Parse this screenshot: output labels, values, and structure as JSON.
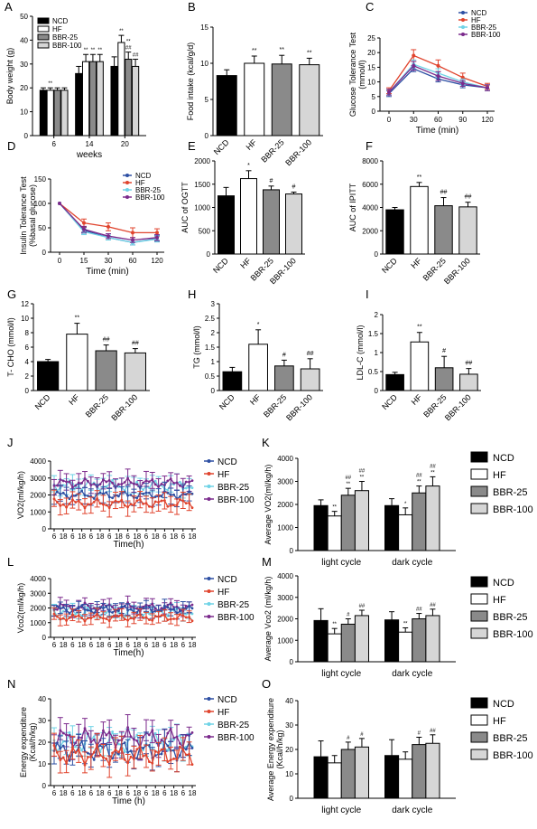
{
  "legend_groups": [
    "NCD",
    "HF",
    "BBR-25",
    "BBR-100"
  ],
  "colors": {
    "ncd_bar": "#000000",
    "hf_bar": "#ffffff",
    "bbr25_bar": "#8a8a8a",
    "bbr100_bar": "#d6d6d6",
    "ncd_line": "#2d4fa3",
    "hf_line": "#e0442e",
    "bbr25_line": "#6fd3e6",
    "bbr100_line": "#7b2a8c"
  },
  "chart_data": [
    {
      "id": "A",
      "letter": "A",
      "type": "bar",
      "ylabel": "Body weight (g)",
      "xlabel": "weeks",
      "ylim": [
        0,
        50
      ],
      "yticks": [
        0,
        10,
        20,
        30,
        40,
        50
      ],
      "categories": [
        "6",
        "14",
        "20"
      ],
      "series": [
        {
          "name": "NCD",
          "values": [
            19,
            26,
            29
          ],
          "err": [
            1,
            3,
            4
          ]
        },
        {
          "name": "HF",
          "values": [
            19,
            31,
            39
          ],
          "err": [
            1,
            3,
            3
          ]
        },
        {
          "name": "BBR-25",
          "values": [
            19,
            31,
            32
          ],
          "err": [
            1,
            3,
            3
          ]
        },
        {
          "name": "BBR-100",
          "values": [
            19,
            31,
            29
          ],
          "err": [
            1,
            3,
            3
          ]
        }
      ],
      "marks": [
        [
          0,
          1,
          "**"
        ],
        [
          1,
          1,
          "**"
        ],
        [
          1,
          2,
          "**"
        ],
        [
          1,
          3,
          "**"
        ],
        [
          2,
          1,
          "**"
        ],
        [
          2,
          2,
          "**\n##"
        ],
        [
          2,
          3,
          "##"
        ]
      ],
      "legend_inside": true
    },
    {
      "id": "B",
      "letter": "B",
      "type": "bar",
      "ylabel": "Food intake (kcal/g/d)",
      "ylim": [
        0,
        15
      ],
      "yticks": [
        0,
        5,
        10,
        15
      ],
      "categories": [
        "NCD",
        "HF",
        "BBR-25",
        "BBR-100"
      ],
      "values": [
        8.3,
        10,
        9.9,
        9.8
      ],
      "err": [
        0.8,
        1.0,
        1.2,
        0.9
      ],
      "marks": [
        "",
        "**",
        "**",
        "**"
      ]
    },
    {
      "id": "C",
      "letter": "C",
      "type": "line",
      "ylabel": "Glucose Tolerance Test\n(mmol/l)",
      "xlabel": "Time (min)",
      "x": [
        0,
        30,
        60,
        90,
        120
      ],
      "ylim": [
        0,
        25
      ],
      "yticks": [
        0,
        5,
        10,
        15,
        20,
        25
      ],
      "series": [
        {
          "name": "NCD",
          "values": [
            6,
            14.5,
            11,
            9,
            8
          ],
          "err": [
            1,
            1,
            1,
            1,
            1
          ]
        },
        {
          "name": "HF",
          "values": [
            7,
            19,
            15.5,
            11.5,
            8.5
          ],
          "err": [
            1,
            2,
            2,
            1.5,
            1
          ]
        },
        {
          "name": "BBR-25",
          "values": [
            6.5,
            16,
            13,
            10,
            8
          ],
          "err": [
            1,
            1.5,
            1.5,
            1,
            1
          ]
        },
        {
          "name": "BBR-100",
          "values": [
            6.5,
            15.5,
            12,
            9.5,
            8
          ],
          "err": [
            1,
            1.5,
            1.5,
            1,
            1
          ]
        }
      ]
    },
    {
      "id": "D",
      "letter": "D",
      "type": "line",
      "ylabel": "Insulin Tolerance Test\n(%basal glucose)",
      "xlabel": "Time (min)",
      "x": [
        0,
        15,
        30,
        60,
        120
      ],
      "ylim": [
        0,
        150
      ],
      "yticks": [
        0,
        50,
        100,
        150
      ],
      "series": [
        {
          "name": "NCD",
          "values": [
            100,
            45,
            30,
            20,
            28
          ],
          "err": [
            0,
            6,
            5,
            5,
            6
          ]
        },
        {
          "name": "HF",
          "values": [
            100,
            60,
            52,
            40,
            40
          ],
          "err": [
            0,
            8,
            8,
            10,
            8
          ]
        },
        {
          "name": "BBR-25",
          "values": [
            100,
            42,
            30,
            20,
            27
          ],
          "err": [
            0,
            6,
            5,
            5,
            6
          ]
        },
        {
          "name": "BBR-100",
          "values": [
            100,
            47,
            33,
            25,
            30
          ],
          "err": [
            0,
            6,
            5,
            5,
            6
          ]
        }
      ]
    },
    {
      "id": "E",
      "letter": "E",
      "type": "bar",
      "ylabel": "AUC of OGTT",
      "ylim": [
        0,
        2000
      ],
      "yticks": [
        0,
        500,
        1000,
        1500,
        2000
      ],
      "categories": [
        "NCD",
        "HF",
        "BBR-25",
        "BBR-100"
      ],
      "values": [
        1250,
        1620,
        1380,
        1290
      ],
      "err": [
        180,
        170,
        80,
        40
      ],
      "marks": [
        "",
        "*",
        "#",
        "#"
      ]
    },
    {
      "id": "F",
      "letter": "F",
      "type": "bar",
      "ylabel": "AUC of IPITT",
      "ylim": [
        0,
        8000
      ],
      "yticks": [
        0,
        2000,
        4000,
        6000,
        8000
      ],
      "categories": [
        "NCD",
        "HF",
        "BBR-25",
        "BBR-100"
      ],
      "values": [
        3800,
        5800,
        4150,
        4050
      ],
      "err": [
        200,
        350,
        700,
        400
      ],
      "marks": [
        "",
        "**",
        "##",
        "##"
      ]
    },
    {
      "id": "G",
      "letter": "G",
      "type": "bar",
      "ylabel": "T- CHO (mmol/l)",
      "ylim": [
        0,
        12
      ],
      "yticks": [
        0,
        2,
        4,
        6,
        8,
        10,
        12
      ],
      "categories": [
        "NCD",
        "HF",
        "BBR-25",
        "BBR-100"
      ],
      "values": [
        4.0,
        7.8,
        5.5,
        5.2
      ],
      "err": [
        0.3,
        1.5,
        0.8,
        0.6
      ],
      "marks": [
        "",
        "**",
        "##",
        "##"
      ]
    },
    {
      "id": "H",
      "letter": "H",
      "type": "bar",
      "ylabel": "TG (mmol/l)",
      "ylim": [
        0,
        3
      ],
      "yticks": [
        0,
        0.5,
        1,
        1.5,
        2,
        2.5,
        3
      ],
      "ytick_labels": [
        "0",
        "0.5",
        "1",
        "1.5",
        "2",
        "2.5",
        "3"
      ],
      "categories": [
        "NCD",
        "HF",
        "BBR-25",
        "BBR-100"
      ],
      "values": [
        0.65,
        1.6,
        0.85,
        0.75
      ],
      "err": [
        0.15,
        0.5,
        0.2,
        0.35
      ],
      "marks": [
        "",
        "*",
        "#",
        "##"
      ]
    },
    {
      "id": "I",
      "letter": "I",
      "type": "bar",
      "ylabel": "LDL-C (mmol/l)",
      "ylim": [
        0,
        2
      ],
      "yticks": [
        0,
        0.5,
        1,
        1.5,
        2
      ],
      "ytick_labels": [
        "0",
        "0.5",
        "1",
        "1.5",
        "2"
      ],
      "categories": [
        "NCD",
        "HF",
        "BBR-25",
        "BBR-100"
      ],
      "values": [
        0.42,
        1.28,
        0.6,
        0.43
      ],
      "err": [
        0.06,
        0.25,
        0.3,
        0.15
      ],
      "marks": [
        "",
        "**",
        "#",
        "##"
      ]
    },
    {
      "id": "J",
      "letter": "J",
      "type": "line",
      "ylabel": "VO2(ml/kg/h)",
      "xlabel": "Time(h)",
      "xtick_labels": [
        "6",
        "18",
        "6",
        "18",
        "6",
        "18",
        "6",
        "18",
        "6",
        "18",
        "6",
        "18",
        "6",
        "18",
        "6",
        "18"
      ],
      "ylim": [
        0,
        4000
      ],
      "yticks": [
        0,
        1000,
        2000,
        3000,
        4000
      ],
      "series": [
        {
          "name": "NCD",
          "base": 2000,
          "amp": 150
        },
        {
          "name": "HF",
          "base": 1500,
          "amp": 180
        },
        {
          "name": "BBR-25",
          "base": 2550,
          "amp": 200
        },
        {
          "name": "BBR-100",
          "base": 2700,
          "amp": 180
        }
      ],
      "err": 550
    },
    {
      "id": "K",
      "letter": "K",
      "type": "bar",
      "ylabel": "Average VO2(ml/kg/h)",
      "ylim": [
        0,
        4000
      ],
      "yticks": [
        0,
        1000,
        2000,
        3000,
        4000
      ],
      "categories": [
        "light cycle",
        "dark cycle"
      ],
      "series": [
        {
          "name": "NCD",
          "values": [
            1950,
            1950
          ],
          "err": [
            250,
            300
          ]
        },
        {
          "name": "HF",
          "values": [
            1500,
            1550
          ],
          "err": [
            200,
            300
          ]
        },
        {
          "name": "BBR-25",
          "values": [
            2400,
            2500
          ],
          "err": [
            300,
            300
          ]
        },
        {
          "name": "BBR-100",
          "values": [
            2600,
            2800
          ],
          "err": [
            400,
            400
          ]
        }
      ],
      "marks": [
        [
          0,
          1,
          "**"
        ],
        [
          0,
          2,
          "##\n**"
        ],
        [
          0,
          3,
          "##\n**"
        ],
        [
          1,
          1,
          "*"
        ],
        [
          1,
          2,
          "##\n**"
        ],
        [
          1,
          3,
          "##\n**"
        ]
      ]
    },
    {
      "id": "L",
      "letter": "L",
      "type": "line",
      "ylabel": "Vco2(ml/kg/h)",
      "xlabel": "Time(h)",
      "xtick_labels": [
        "6",
        "18",
        "6",
        "18",
        "6",
        "18",
        "6",
        "18",
        "6",
        "18",
        "6",
        "18",
        "6",
        "18",
        "6",
        "18"
      ],
      "ylim": [
        0,
        4000
      ],
      "yticks": [
        0,
        1000,
        2000,
        3000,
        4000
      ],
      "series": [
        {
          "name": "NCD",
          "base": 1900,
          "amp": 180
        },
        {
          "name": "HF",
          "base": 1350,
          "amp": 160
        },
        {
          "name": "BBR-25",
          "base": 1750,
          "amp": 220
        },
        {
          "name": "BBR-100",
          "base": 2050,
          "amp": 200
        }
      ],
      "err": 450
    },
    {
      "id": "M",
      "letter": "M",
      "type": "bar",
      "ylabel": "Average Vco2 (ml/kg/h)",
      "ylim": [
        0,
        4000
      ],
      "yticks": [
        0,
        1000,
        2000,
        3000,
        4000
      ],
      "categories": [
        "light  cycle",
        "dark cycle"
      ],
      "series": [
        {
          "name": "NCD",
          "values": [
            1920,
            1950
          ],
          "err": [
            550,
            380
          ]
        },
        {
          "name": "HF",
          "values": [
            1300,
            1380
          ],
          "err": [
            250,
            200
          ]
        },
        {
          "name": "BBR-25",
          "values": [
            1750,
            2000
          ],
          "err": [
            250,
            250
          ]
        },
        {
          "name": "BBR-100",
          "values": [
            2150,
            2150
          ],
          "err": [
            250,
            300
          ]
        }
      ],
      "marks": [
        [
          0,
          1,
          "**"
        ],
        [
          0,
          2,
          "#"
        ],
        [
          0,
          3,
          "##"
        ],
        [
          1,
          1,
          "**"
        ],
        [
          1,
          2,
          "##"
        ],
        [
          1,
          3,
          "##"
        ]
      ]
    },
    {
      "id": "N",
      "letter": "N",
      "type": "line",
      "ylabel": "Energy expenditure\n(Kcal/h/kg)",
      "xlabel": "Time (h)",
      "xtick_labels": [
        "6",
        "18",
        "6",
        "18",
        "6",
        "18",
        "6",
        "18",
        "6",
        "18",
        "6",
        "18",
        "6",
        "18",
        "6",
        "18"
      ],
      "ylim": [
        0,
        40
      ],
      "yticks": [
        0,
        10,
        20,
        30,
        40
      ],
      "series": [
        {
          "name": "NCD",
          "base": 16,
          "amp": 3
        },
        {
          "name": "HF",
          "base": 14,
          "amp": 3
        },
        {
          "name": "BBR-25",
          "base": 20,
          "amp": 3
        },
        {
          "name": "BBR-100",
          "base": 22,
          "amp": 3
        }
      ],
      "err": 6
    },
    {
      "id": "O",
      "letter": "O",
      "type": "bar",
      "ylabel": "Average Energy expenditure\n(Kcal/h/kg)",
      "ylim": [
        0,
        40
      ],
      "yticks": [
        0,
        10,
        20,
        30,
        40
      ],
      "categories": [
        "light cycle",
        "dark cycle"
      ],
      "series": [
        {
          "name": "NCD",
          "values": [
            17,
            17.5
          ],
          "err": [
            6.5,
            6.5
          ]
        },
        {
          "name": "HF",
          "values": [
            14.5,
            16
          ],
          "err": [
            3,
            3
          ]
        },
        {
          "name": "BBR-25",
          "values": [
            20,
            22
          ],
          "err": [
            3,
            3
          ]
        },
        {
          "name": "BBR-100",
          "values": [
            21,
            22.5
          ],
          "err": [
            3.5,
            3.5
          ]
        }
      ],
      "marks": [
        [
          0,
          2,
          "#"
        ],
        [
          0,
          3,
          "#"
        ],
        [
          1,
          2,
          "#"
        ],
        [
          1,
          3,
          "##"
        ]
      ]
    }
  ]
}
